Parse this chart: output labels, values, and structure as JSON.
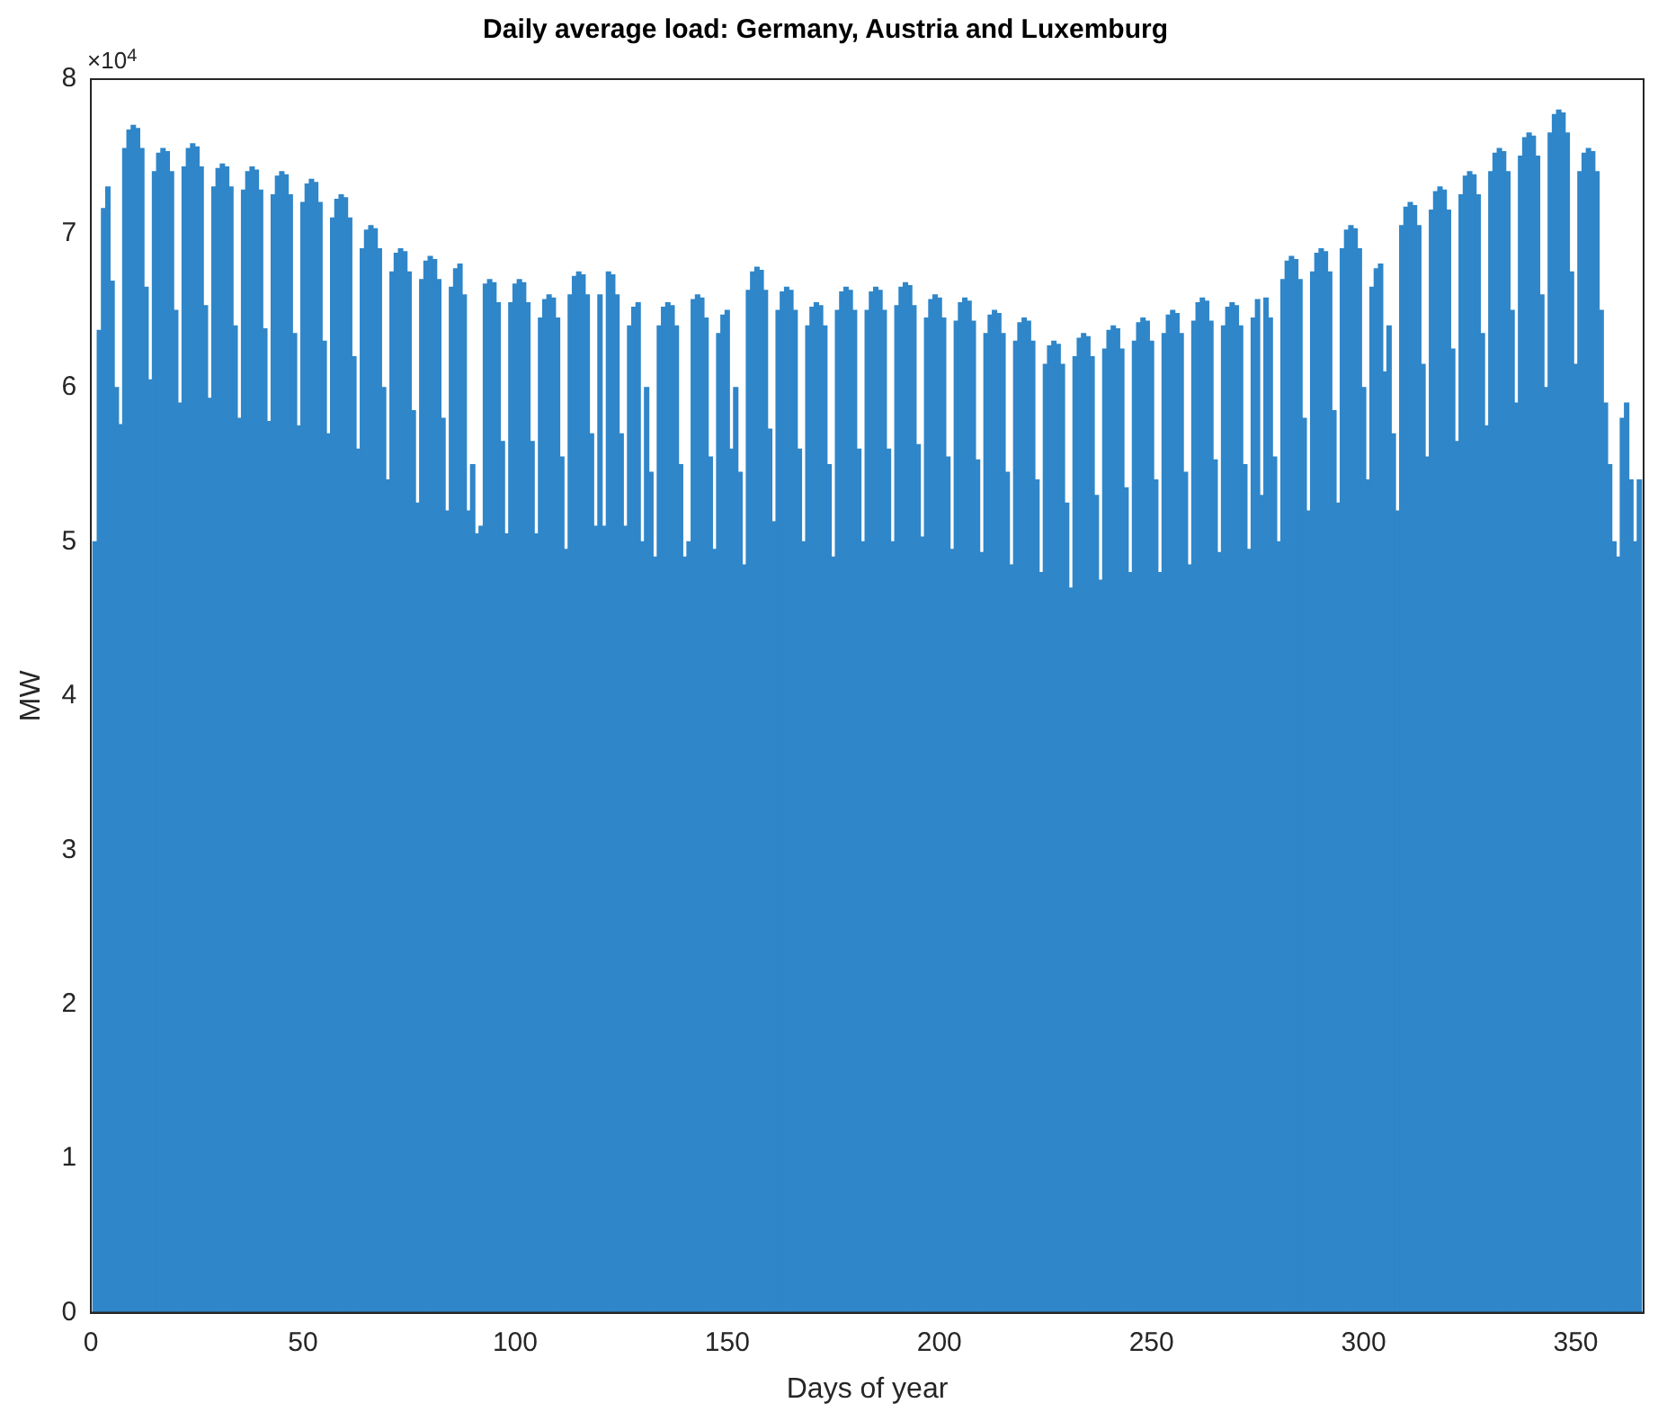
{
  "chart_data": {
    "type": "bar",
    "title": "Daily average load: Germany, Austria and Luxemburg",
    "xlabel": "Days of year",
    "ylabel": "MW",
    "annotations": [
      "×10$^{4}$"
    ],
    "color": "#2f86c9",
    "grid": false,
    "legend": false,
    "xlim": [
      0,
      366
    ],
    "xticks": [
      0,
      50,
      100,
      150,
      200,
      250,
      300,
      350
    ],
    "ylim": [
      0,
      8
    ],
    "yticks": [
      0,
      1,
      2,
      3,
      4,
      5,
      6,
      7,
      8
    ],
    "x": [
      1,
      2,
      3,
      4,
      5,
      6,
      7,
      8,
      9,
      10,
      11,
      12,
      13,
      14,
      15,
      16,
      17,
      18,
      19,
      20,
      21,
      22,
      23,
      24,
      25,
      26,
      27,
      28,
      29,
      30,
      31,
      32,
      33,
      34,
      35,
      36,
      37,
      38,
      39,
      40,
      41,
      42,
      43,
      44,
      45,
      46,
      47,
      48,
      49,
      50,
      51,
      52,
      53,
      54,
      55,
      56,
      57,
      58,
      59,
      60,
      61,
      62,
      63,
      64,
      65,
      66,
      67,
      68,
      69,
      70,
      71,
      72,
      73,
      74,
      75,
      76,
      77,
      78,
      79,
      80,
      81,
      82,
      83,
      84,
      85,
      86,
      87,
      88,
      89,
      90,
      91,
      92,
      93,
      94,
      95,
      96,
      97,
      98,
      99,
      100,
      101,
      102,
      103,
      104,
      105,
      106,
      107,
      108,
      109,
      110,
      111,
      112,
      113,
      114,
      115,
      116,
      117,
      118,
      119,
      120,
      121,
      122,
      123,
      124,
      125,
      126,
      127,
      128,
      129,
      130,
      131,
      132,
      133,
      134,
      135,
      136,
      137,
      138,
      139,
      140,
      141,
      142,
      143,
      144,
      145,
      146,
      147,
      148,
      149,
      150,
      151,
      152,
      153,
      154,
      155,
      156,
      157,
      158,
      159,
      160,
      161,
      162,
      163,
      164,
      165,
      166,
      167,
      168,
      169,
      170,
      171,
      172,
      173,
      174,
      175,
      176,
      177,
      178,
      179,
      180,
      181,
      182,
      183,
      184,
      185,
      186,
      187,
      188,
      189,
      190,
      191,
      192,
      193,
      194,
      195,
      196,
      197,
      198,
      199,
      200,
      201,
      202,
      203,
      204,
      205,
      206,
      207,
      208,
      209,
      210,
      211,
      212,
      213,
      214,
      215,
      216,
      217,
      218,
      219,
      220,
      221,
      222,
      223,
      224,
      225,
      226,
      227,
      228,
      229,
      230,
      231,
      232,
      233,
      234,
      235,
      236,
      237,
      238,
      239,
      240,
      241,
      242,
      243,
      244,
      245,
      246,
      247,
      248,
      249,
      250,
      251,
      252,
      253,
      254,
      255,
      256,
      257,
      258,
      259,
      260,
      261,
      262,
      263,
      264,
      265,
      266,
      267,
      268,
      269,
      270,
      271,
      272,
      273,
      274,
      275,
      276,
      277,
      278,
      279,
      280,
      281,
      282,
      283,
      284,
      285,
      286,
      287,
      288,
      289,
      290,
      291,
      292,
      293,
      294,
      295,
      296,
      297,
      298,
      299,
      300,
      301,
      302,
      303,
      304,
      305,
      306,
      307,
      308,
      309,
      310,
      311,
      312,
      313,
      314,
      315,
      316,
      317,
      318,
      319,
      320,
      321,
      322,
      323,
      324,
      325,
      326,
      327,
      328,
      329,
      330,
      331,
      332,
      333,
      334,
      335,
      336,
      337,
      338,
      339,
      340,
      341,
      342,
      343,
      344,
      345,
      346,
      347,
      348,
      349,
      350,
      351,
      352,
      353,
      354,
      355,
      356,
      357,
      358,
      359,
      360,
      361,
      362,
      363,
      364,
      365
    ],
    "values": [
      5.0,
      6.37,
      7.16,
      7.3,
      6.69,
      6.0,
      5.76,
      7.55,
      7.67,
      7.7,
      7.68,
      7.55,
      6.65,
      6.05,
      7.4,
      7.52,
      7.55,
      7.53,
      7.4,
      6.5,
      5.9,
      7.43,
      7.55,
      7.58,
      7.56,
      7.43,
      6.53,
      5.93,
      7.3,
      7.42,
      7.45,
      7.43,
      7.3,
      6.4,
      5.8,
      7.28,
      7.4,
      7.43,
      7.41,
      7.28,
      6.38,
      5.78,
      7.25,
      7.37,
      7.4,
      7.38,
      7.25,
      6.35,
      5.75,
      7.2,
      7.32,
      7.35,
      7.33,
      7.2,
      6.3,
      5.7,
      7.1,
      7.22,
      7.25,
      7.23,
      7.1,
      6.2,
      5.6,
      6.9,
      7.02,
      7.05,
      7.03,
      6.9,
      6.0,
      5.4,
      6.75,
      6.87,
      6.9,
      6.88,
      6.75,
      5.85,
      5.25,
      6.7,
      6.82,
      6.85,
      6.83,
      6.7,
      5.8,
      5.2,
      6.65,
      6.77,
      6.8,
      6.6,
      5.2,
      5.5,
      5.05,
      5.1,
      6.67,
      6.7,
      6.68,
      6.55,
      5.65,
      5.05,
      6.55,
      6.67,
      6.7,
      6.68,
      6.55,
      5.65,
      5.05,
      6.45,
      6.57,
      6.6,
      6.58,
      6.45,
      5.55,
      4.95,
      6.6,
      6.72,
      6.75,
      6.73,
      6.6,
      5.7,
      5.1,
      6.6,
      5.1,
      6.75,
      6.73,
      6.6,
      5.7,
      5.1,
      6.4,
      6.52,
      6.55,
      5.0,
      6.0,
      5.45,
      4.9,
      6.4,
      6.52,
      6.55,
      6.53,
      6.4,
      5.5,
      4.9,
      5.0,
      6.57,
      6.6,
      6.58,
      6.45,
      5.55,
      4.95,
      6.35,
      6.47,
      6.5,
      5.6,
      6.0,
      5.45,
      4.85,
      6.63,
      6.75,
      6.78,
      6.76,
      6.63,
      5.73,
      5.13,
      6.5,
      6.62,
      6.65,
      6.63,
      6.5,
      5.6,
      5.0,
      6.4,
      6.52,
      6.55,
      6.53,
      6.4,
      5.5,
      4.9,
      6.5,
      6.62,
      6.65,
      6.63,
      6.5,
      5.6,
      5.0,
      6.5,
      6.62,
      6.65,
      6.63,
      6.5,
      5.6,
      5.0,
      6.53,
      6.65,
      6.68,
      6.66,
      6.53,
      5.63,
      5.03,
      6.45,
      6.57,
      6.6,
      6.58,
      6.45,
      5.55,
      4.95,
      6.43,
      6.55,
      6.58,
      6.56,
      6.43,
      5.53,
      4.93,
      6.35,
      6.47,
      6.5,
      6.48,
      6.35,
      5.45,
      4.85,
      6.3,
      6.42,
      6.45,
      6.43,
      6.3,
      5.4,
      4.8,
      6.15,
      6.27,
      6.3,
      6.28,
      6.15,
      5.25,
      4.7,
      6.2,
      6.32,
      6.35,
      6.33,
      6.2,
      5.3,
      4.75,
      6.25,
      6.37,
      6.4,
      6.38,
      6.25,
      5.35,
      4.8,
      6.3,
      6.42,
      6.45,
      6.43,
      6.3,
      5.4,
      4.8,
      6.35,
      6.47,
      6.5,
      6.48,
      6.35,
      5.45,
      4.85,
      6.43,
      6.55,
      6.58,
      6.56,
      6.43,
      5.53,
      4.93,
      6.4,
      6.52,
      6.55,
      6.53,
      6.4,
      5.5,
      4.95,
      6.45,
      6.57,
      5.3,
      6.58,
      6.45,
      5.55,
      5.0,
      6.7,
      6.82,
      6.85,
      6.83,
      6.7,
      5.8,
      5.2,
      6.75,
      6.87,
      6.9,
      6.88,
      6.75,
      5.85,
      5.25,
      6.9,
      7.02,
      7.05,
      7.03,
      6.9,
      6.0,
      5.4,
      6.65,
      6.77,
      6.8,
      6.1,
      6.4,
      5.7,
      5.2,
      7.05,
      7.17,
      7.2,
      7.18,
      7.05,
      6.15,
      5.55,
      7.15,
      7.27,
      7.3,
      7.28,
      7.15,
      6.25,
      5.65,
      7.25,
      7.37,
      7.4,
      7.38,
      7.25,
      6.35,
      5.75,
      7.4,
      7.52,
      7.55,
      7.53,
      7.4,
      6.5,
      5.9,
      7.5,
      7.62,
      7.65,
      7.63,
      7.5,
      6.6,
      6.0,
      7.65,
      7.77,
      7.8,
      7.78,
      7.65,
      6.75,
      6.15,
      7.4,
      7.52,
      7.55,
      7.53,
      7.4,
      6.5,
      5.9,
      5.5,
      5.0,
      4.9,
      5.8,
      5.9,
      5.4,
      5.0,
      5.4
    ]
  }
}
